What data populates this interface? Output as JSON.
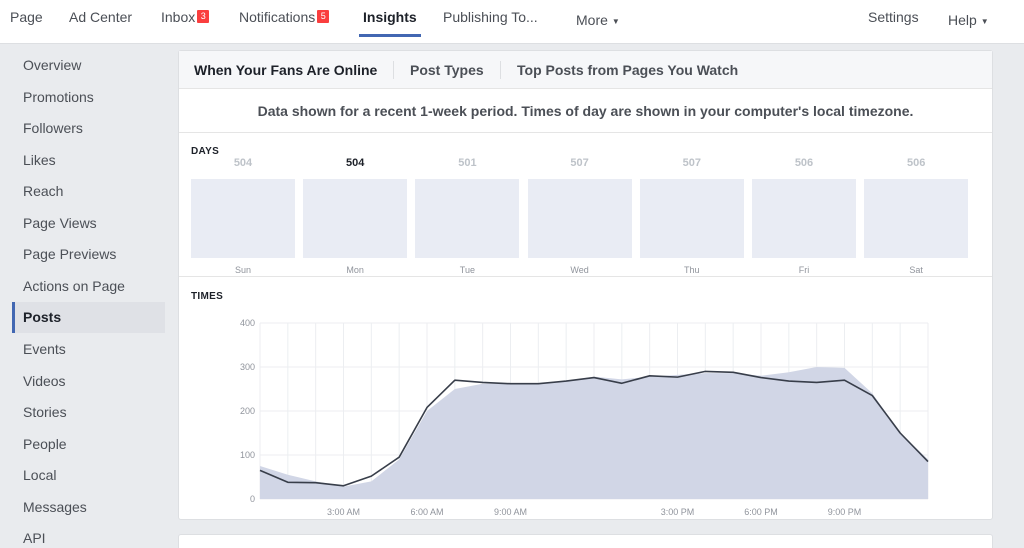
{
  "topnav": {
    "items": [
      {
        "label": "Page"
      },
      {
        "label": "Ad Center"
      },
      {
        "label": "Inbox",
        "badge": "3"
      },
      {
        "label": "Notifications",
        "badge": "5"
      },
      {
        "label": "Insights",
        "active": true
      },
      {
        "label": "Publishing To..."
      },
      {
        "label": "More"
      }
    ],
    "settings_label": "Settings",
    "help_label": "Help",
    "active_color": "#4267b2",
    "badge_color": "#fa3e3e"
  },
  "sidebar": {
    "items": [
      {
        "label": "Overview"
      },
      {
        "label": "Promotions"
      },
      {
        "label": "Followers"
      },
      {
        "label": "Likes"
      },
      {
        "label": "Reach"
      },
      {
        "label": "Page Views"
      },
      {
        "label": "Page Previews"
      },
      {
        "label": "Actions on Page"
      },
      {
        "label": "Posts",
        "active": true
      },
      {
        "label": "Events"
      },
      {
        "label": "Videos"
      },
      {
        "label": "Stories"
      },
      {
        "label": "People"
      },
      {
        "label": "Local"
      },
      {
        "label": "Messages"
      },
      {
        "label": "API"
      }
    ]
  },
  "main": {
    "tabs": [
      {
        "label": "When Your Fans Are Online",
        "active": true
      },
      {
        "label": "Post Types"
      },
      {
        "label": "Top Posts from Pages You Watch"
      }
    ],
    "notice": "Data shown for a recent 1-week period. Times of day are shown in your computer's local timezone.",
    "days_label": "DAYS",
    "times_label": "TIMES",
    "days": [
      {
        "name": "Sun",
        "count": "504"
      },
      {
        "name": "Mon",
        "count": "504",
        "highlighted": true
      },
      {
        "name": "Tue",
        "count": "501"
      },
      {
        "name": "Wed",
        "count": "507"
      },
      {
        "name": "Thu",
        "count": "507"
      },
      {
        "name": "Fri",
        "count": "506"
      },
      {
        "name": "Sat",
        "count": "506"
      }
    ]
  },
  "chart_data": {
    "type": "area",
    "title": "",
    "xlabel": "",
    "ylabel": "",
    "ylim": [
      0,
      400
    ],
    "y_ticks": [
      "0",
      "100",
      "200",
      "300",
      "400"
    ],
    "x_tick_labels": [
      {
        "hour": 3,
        "label": "3:00 AM"
      },
      {
        "hour": 6,
        "label": "6:00 AM"
      },
      {
        "hour": 9,
        "label": "9:00 AM"
      },
      {
        "hour": 15,
        "label": "3:00 PM"
      },
      {
        "hour": 18,
        "label": "6:00 PM"
      },
      {
        "hour": 21,
        "label": "9:00 PM"
      }
    ],
    "x": [
      0,
      1,
      2,
      3,
      4,
      5,
      6,
      7,
      8,
      9,
      10,
      11,
      12,
      13,
      14,
      15,
      16,
      17,
      18,
      19,
      20,
      21,
      22,
      23,
      24
    ],
    "series": [
      {
        "style": "area",
        "color": "#d1d6e6",
        "values": [
          75,
          55,
          40,
          28,
          40,
          90,
          200,
          250,
          262,
          262,
          263,
          268,
          278,
          272,
          278,
          282,
          286,
          286,
          280,
          288,
          300,
          298,
          240,
          150,
          90
        ]
      },
      {
        "style": "line",
        "color": "#383e4a",
        "values": [
          65,
          38,
          37,
          30,
          52,
          95,
          208,
          270,
          265,
          262,
          262,
          268,
          276,
          263,
          280,
          277,
          290,
          288,
          276,
          268,
          265,
          270,
          235,
          150,
          85
        ]
      }
    ],
    "grid": true,
    "legend": "none"
  }
}
